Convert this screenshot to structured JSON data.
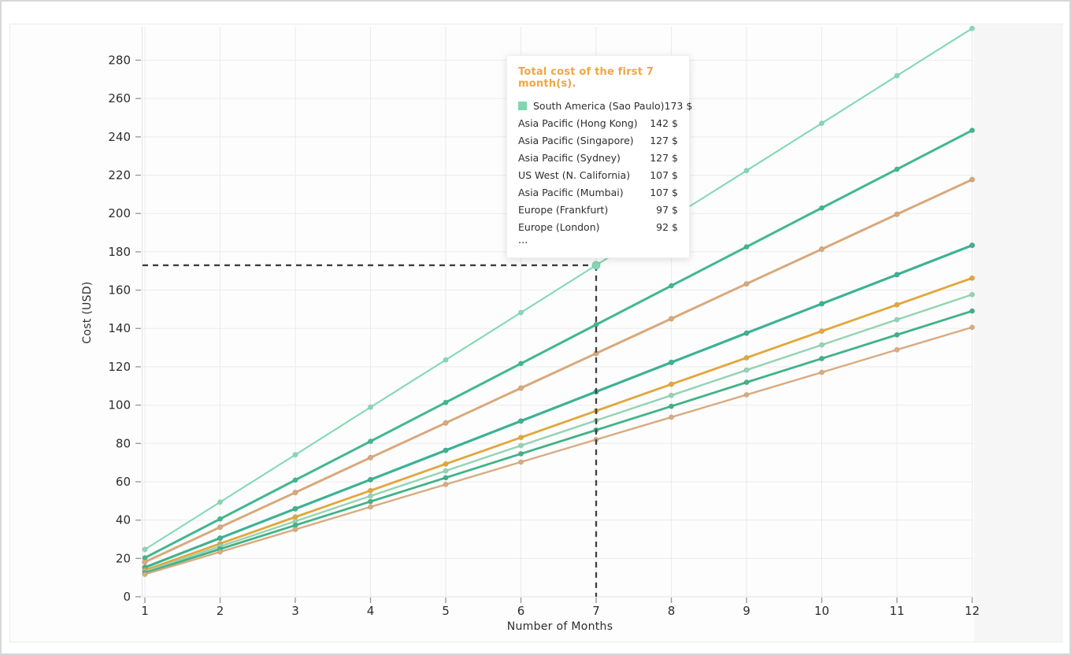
{
  "window": {
    "outer_border": "#d6d7db",
    "panel_border": "#ececef",
    "panel_background": "#fdfdfd",
    "right_strip_background": "#f6f6f7",
    "gridline_color": "#ebebeb",
    "axis_line_color": "#e3e3e3",
    "tick_mark_color": "#9a9a9a",
    "tick_label_color": "#2d2d2d"
  },
  "chart_data": {
    "type": "line",
    "title": "",
    "xlabel": "Number of Months",
    "ylabel": "Cost (USD)",
    "x": [
      1,
      2,
      3,
      4,
      5,
      6,
      7,
      8,
      9,
      10,
      11,
      12
    ],
    "x_tick_labels": [
      "1",
      "2",
      "3",
      "4",
      "5",
      "6",
      "7",
      "8",
      "9",
      "10",
      "11",
      "12"
    ],
    "y_ticks": [
      0,
      20,
      40,
      60,
      80,
      100,
      120,
      140,
      160,
      180,
      200,
      220,
      240,
      260,
      280
    ],
    "ylim": [
      0,
      300
    ],
    "xlim": [
      1,
      12
    ],
    "grid": true,
    "legend_position": "tooltip-overlay",
    "series": [
      {
        "name": "South America (Sao Paulo)",
        "color": "#84d9b5",
        "monthly_cost": 24.71,
        "values": [
          24.7,
          49.4,
          74.1,
          98.9,
          123.6,
          148.3,
          173,
          197.7,
          222.4,
          247.1,
          271.9,
          296.6
        ]
      },
      {
        "name": "Asia Pacific (Hong Kong)",
        "color": "#41b790",
        "monthly_cost": 20.29,
        "values": [
          20.3,
          40.6,
          60.9,
          81.1,
          101.4,
          121.7,
          142,
          162.3,
          182.6,
          202.9,
          223.1,
          243.4
        ]
      },
      {
        "name": "Asia Pacific (Singapore)",
        "color": "#d9a87c",
        "monthly_cost": 18.14,
        "values": [
          18.1,
          36.3,
          54.4,
          72.6,
          90.7,
          108.9,
          127,
          145.1,
          163.3,
          181.4,
          199.6,
          217.7
        ]
      },
      {
        "name": "Asia Pacific (Sydney)",
        "color": "#d9a87c",
        "monthly_cost": 18.14,
        "values": [
          18.1,
          36.3,
          54.4,
          72.6,
          90.7,
          108.9,
          127,
          145.1,
          163.3,
          181.4,
          199.6,
          217.7
        ]
      },
      {
        "name": "US West (N. California)",
        "color": "#3db293",
        "monthly_cost": 15.29,
        "values": [
          15.3,
          30.6,
          45.9,
          61.1,
          76.4,
          91.7,
          107,
          122.3,
          137.6,
          152.9,
          168.1,
          183.4
        ]
      },
      {
        "name": "Asia Pacific (Mumbai)",
        "color": "#3db293",
        "monthly_cost": 15.29,
        "values": [
          15.3,
          30.6,
          45.9,
          61.1,
          76.4,
          91.7,
          107,
          122.3,
          137.6,
          152.9,
          168.1,
          183.4
        ]
      },
      {
        "name": "Europe (Frankfurt)",
        "color": "#e3a63c",
        "monthly_cost": 13.86,
        "values": [
          13.9,
          27.7,
          41.6,
          55.4,
          69.3,
          83.1,
          97,
          110.9,
          124.7,
          138.6,
          152.4,
          166.3
        ]
      },
      {
        "name": "Europe (London)",
        "color": "#94d3b3",
        "monthly_cost": 13.14,
        "values": [
          13.1,
          26.3,
          39.4,
          52.6,
          65.7,
          78.9,
          92,
          105.1,
          118.3,
          131.4,
          144.6,
          157.7
        ]
      },
      {
        "name": "...",
        "color": "#41b288",
        "monthly_cost": 12.43,
        "values": [
          12.4,
          24.9,
          37.3,
          49.7,
          62.1,
          74.6,
          87,
          99.4,
          111.9,
          124.3,
          136.7,
          149.1
        ]
      },
      {
        "name": "...",
        "color": "#d9ab81",
        "monthly_cost": 11.71,
        "values": [
          11.7,
          23.4,
          35.1,
          46.9,
          58.6,
          70.3,
          82,
          93.7,
          105.4,
          117.1,
          128.9,
          140.6
        ]
      }
    ],
    "highlight": {
      "month": 7,
      "series_index": 0,
      "value": 173,
      "guide_color": "#3f3f3f"
    }
  },
  "tooltip": {
    "title": "Total cost of the first 7 month(s).",
    "title_color": "#efa73e",
    "rows": [
      {
        "name": "South America (Sao Paulo)",
        "value": "173 $",
        "marker_color": "#7fd6b0"
      },
      {
        "name": "Asia Pacific (Hong Kong)",
        "value": "142 $",
        "marker_color": null
      },
      {
        "name": "Asia Pacific (Singapore)",
        "value": "127 $",
        "marker_color": null
      },
      {
        "name": "Asia Pacific (Sydney)",
        "value": "127 $",
        "marker_color": null
      },
      {
        "name": "US West (N. California)",
        "value": "107 $",
        "marker_color": null
      },
      {
        "name": "Asia Pacific (Mumbai)",
        "value": "107 $",
        "marker_color": null
      },
      {
        "name": "Europe (Frankfurt)",
        "value": "97 $",
        "marker_color": null
      },
      {
        "name": "Europe (London)",
        "value": "92 $",
        "marker_color": null
      }
    ],
    "more_indicator": "..."
  }
}
